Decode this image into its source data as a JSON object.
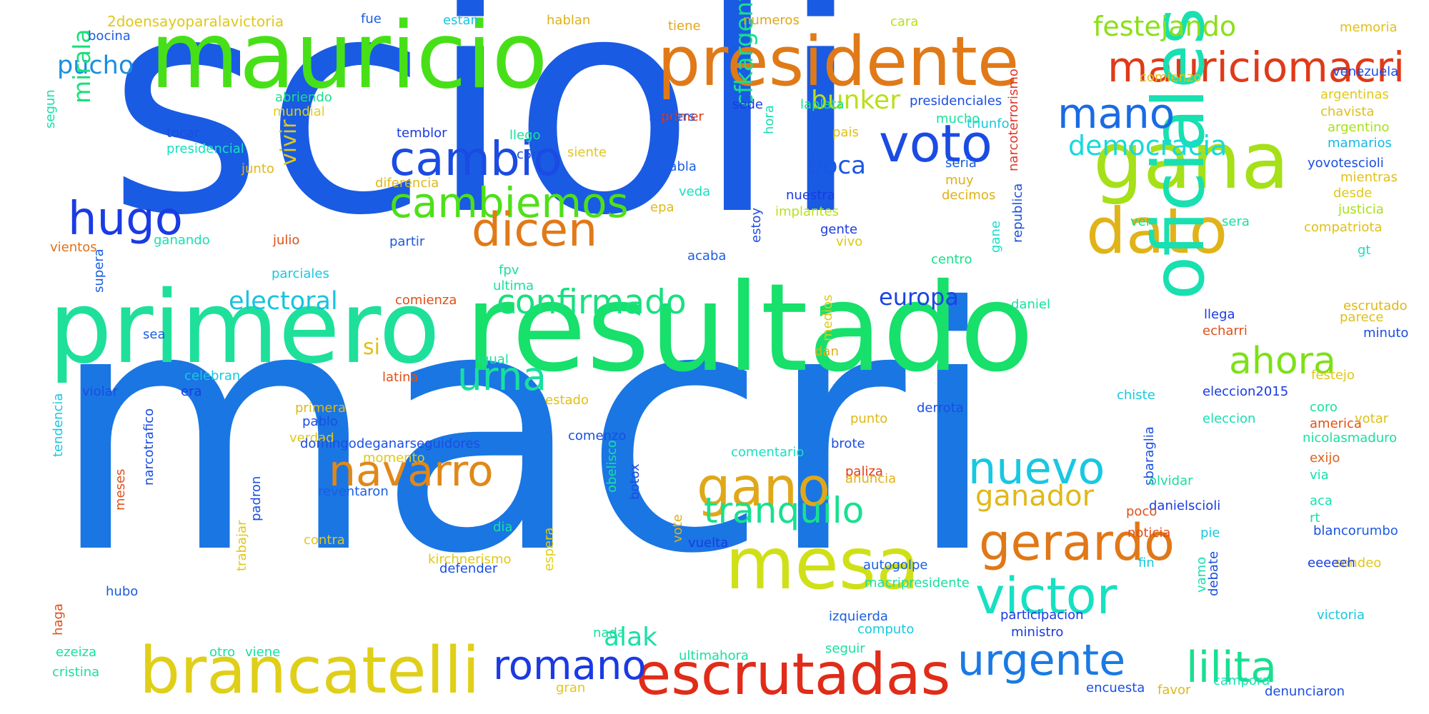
{
  "word_cloud": {
    "words": [
      {
        "text": "scioli",
        "color": "#1a5be3"
      },
      {
        "text": "macri",
        "color": "#1a76e3"
      },
      {
        "text": "resultado",
        "color": "#17e06b"
      },
      {
        "text": "primero",
        "color": "#1ee09a"
      },
      {
        "text": "mauricio",
        "color": "#47e018"
      },
      {
        "text": "presidente",
        "color": "#e07a18"
      },
      {
        "text": "gana",
        "color": "#a5e018"
      },
      {
        "text": "dato",
        "color": "#e0b318"
      },
      {
        "text": "mauriciomacri",
        "color": "#e03a18"
      },
      {
        "text": "brancatelli",
        "color": "#e0cf18"
      },
      {
        "text": "escrutadas",
        "color": "#e02c18"
      },
      {
        "text": "mesa",
        "color": "#d0e018"
      },
      {
        "text": "oficiales",
        "color": "#18e0b0"
      },
      {
        "text": "gano",
        "color": "#e0a818"
      },
      {
        "text": "voto",
        "color": "#1a4be3"
      },
      {
        "text": "mano",
        "color": "#1a6be3"
      },
      {
        "text": "cambio",
        "color": "#1a4be3"
      },
      {
        "text": "cambiemos",
        "color": "#4ee018"
      },
      {
        "text": "dicen",
        "color": "#e07a18"
      },
      {
        "text": "hugo",
        "color": "#1a3be3"
      },
      {
        "text": "confirmado",
        "color": "#18e07e"
      },
      {
        "text": "urna",
        "color": "#18e09e"
      },
      {
        "text": "navarro",
        "color": "#e08818"
      },
      {
        "text": "tranquilo",
        "color": "#18e090"
      },
      {
        "text": "nuevo",
        "color": "#18c8e0"
      },
      {
        "text": "victor",
        "color": "#18e0c2"
      },
      {
        "text": "gerardo",
        "color": "#e07818"
      },
      {
        "text": "urgente",
        "color": "#1a7ae3"
      },
      {
        "text": "lilita",
        "color": "#18e090"
      },
      {
        "text": "romano",
        "color": "#1a3ae3"
      },
      {
        "text": "ahora",
        "color": "#7ee018"
      },
      {
        "text": "festejando",
        "color": "#8be018"
      },
      {
        "text": "bunker",
        "color": "#b8e018"
      },
      {
        "text": "democracia",
        "color": "#18d8e0"
      },
      {
        "text": "cfkargentina",
        "color": "#18e08a"
      },
      {
        "text": "boca",
        "color": "#1a58e3"
      },
      {
        "text": "europa",
        "color": "#1a44e3"
      },
      {
        "text": "ganador",
        "color": "#e0b818"
      },
      {
        "text": "electoral",
        "color": "#18c2e0"
      },
      {
        "text": "pucho",
        "color": "#1a8ee3"
      },
      {
        "text": "mirala",
        "color": "#18e07a"
      },
      {
        "text": "vivir",
        "color": "#e0c818"
      },
      {
        "text": "alak",
        "color": "#18e0a6"
      },
      {
        "text": "si",
        "color": "#e0c018"
      },
      {
        "text": "2doensayoparalavictoria",
        "color": "#e0c818"
      },
      {
        "text": "bocina",
        "color": "#1a5ee3"
      },
      {
        "text": "fue",
        "color": "#1a5ee3"
      },
      {
        "text": "estan",
        "color": "#18c8e0"
      },
      {
        "text": "hablan",
        "color": "#e0b018"
      },
      {
        "text": "tiene",
        "color": "#e0a818"
      },
      {
        "text": "numeros",
        "color": "#e0a818"
      },
      {
        "text": "cara",
        "color": "#b8e018"
      },
      {
        "text": "memoria",
        "color": "#e0c018"
      },
      {
        "text": "comienzo",
        "color": "#e0c018"
      },
      {
        "text": "venezuela",
        "color": "#1a4ee3"
      },
      {
        "text": "abriendo",
        "color": "#18e08a"
      },
      {
        "text": "mundial",
        "color": "#e0d018"
      },
      {
        "text": "sede",
        "color": "#1a3ae3"
      },
      {
        "text": "primer",
        "color": "#e03a18"
      },
      {
        "text": "laplata",
        "color": "#18e088"
      },
      {
        "text": "presidenciales",
        "color": "#1a4ee3"
      },
      {
        "text": "triunfo",
        "color": "#18c8e0"
      },
      {
        "text": "narcoterrorismo",
        "color": "#e0382a"
      },
      {
        "text": "argentinas",
        "color": "#e0c818"
      },
      {
        "text": "chavista",
        "color": "#e0c018"
      },
      {
        "text": "argentino",
        "color": "#a8e018"
      },
      {
        "text": "mamarios",
        "color": "#18b8e0"
      },
      {
        "text": "segun",
        "color": "#18e0a8"
      },
      {
        "text": "tocar",
        "color": "#1a4ee3"
      },
      {
        "text": "temblor",
        "color": "#1a3ae3"
      },
      {
        "text": "llego",
        "color": "#18e0a0"
      },
      {
        "text": "kelpers",
        "color": "#1a58e3"
      },
      {
        "text": "hora",
        "color": "#18e0b0"
      },
      {
        "text": "mucho",
        "color": "#18e0a0"
      },
      {
        "text": "pais",
        "color": "#e0c018"
      },
      {
        "text": "presidencial",
        "color": "#18e0c0"
      },
      {
        "text": "junto",
        "color": "#e0b818"
      },
      {
        "text": "siente",
        "color": "#e0c818"
      },
      {
        "text": "c5n",
        "color": "#1a4ee3"
      },
      {
        "text": "habla",
        "color": "#1a5ee3"
      },
      {
        "text": "seria",
        "color": "#1a5ee3"
      },
      {
        "text": "muy",
        "color": "#e0b018"
      },
      {
        "text": "yovotescioli",
        "color": "#1a4ee3"
      },
      {
        "text": "mientras",
        "color": "#e0c018"
      },
      {
        "text": "diferencia",
        "color": "#e0b818"
      },
      {
        "text": "epa",
        "color": "#e0b818"
      },
      {
        "text": "nuestra",
        "color": "#1a3ae3"
      },
      {
        "text": "decimos",
        "color": "#e0b018"
      },
      {
        "text": "desde",
        "color": "#e0c818"
      },
      {
        "text": "veda",
        "color": "#18e0c0"
      },
      {
        "text": "implantes",
        "color": "#b8e018"
      },
      {
        "text": "republica",
        "color": "#1a4ee3"
      },
      {
        "text": "justicia",
        "color": "#a8e018"
      },
      {
        "text": "ganando",
        "color": "#18e0b0"
      },
      {
        "text": "julio",
        "color": "#e05018"
      },
      {
        "text": "gente",
        "color": "#1a3ae3"
      },
      {
        "text": "estoy",
        "color": "#1a4ee3"
      },
      {
        "text": "gane",
        "color": "#18e0c8"
      },
      {
        "text": "ver",
        "color": "#18e080"
      },
      {
        "text": "sera",
        "color": "#18e0a0"
      },
      {
        "text": "compatriota",
        "color": "#e0c018"
      },
      {
        "text": "vientos",
        "color": "#e07018"
      },
      {
        "text": "partir",
        "color": "#1a58e3"
      },
      {
        "text": "vivo",
        "color": "#e0c818"
      },
      {
        "text": "acaba",
        "color": "#1a5ee3"
      },
      {
        "text": "centro",
        "color": "#18e088"
      },
      {
        "text": "gt",
        "color": "#18e0c0"
      },
      {
        "text": "supera",
        "color": "#1a5ee3"
      },
      {
        "text": "parciales",
        "color": "#18c8e0"
      },
      {
        "text": "fpv",
        "color": "#18e0a0"
      },
      {
        "text": "ultima",
        "color": "#18e0a0"
      },
      {
        "text": "comienza",
        "color": "#e05018"
      },
      {
        "text": "daniel",
        "color": "#18e0a0"
      },
      {
        "text": "escrutado",
        "color": "#e0b818"
      },
      {
        "text": "llega",
        "color": "#1a3ae3"
      },
      {
        "text": "parece",
        "color": "#e0c018"
      },
      {
        "text": "medios",
        "color": "#e0c818"
      },
      {
        "text": "sea",
        "color": "#1a5ee3"
      },
      {
        "text": "igual",
        "color": "#18e0a0"
      },
      {
        "text": "dan",
        "color": "#e0b018"
      },
      {
        "text": "echarri",
        "color": "#e05018"
      },
      {
        "text": "minuto",
        "color": "#1a4ee3"
      },
      {
        "text": "celebran",
        "color": "#18c8e0"
      },
      {
        "text": "latina",
        "color": "#e05018"
      },
      {
        "text": "festejo",
        "color": "#e0c818"
      },
      {
        "text": "violar",
        "color": "#1a4ee3"
      },
      {
        "text": "era",
        "color": "#1a3ae3"
      },
      {
        "text": "chiste",
        "color": "#18c8e0"
      },
      {
        "text": "eleccion2015",
        "color": "#1a3ae3"
      },
      {
        "text": "estado",
        "color": "#e0c018"
      },
      {
        "text": "primera",
        "color": "#e0b818"
      },
      {
        "text": "america",
        "color": "#e05018"
      },
      {
        "text": "coro",
        "color": "#18e0a0"
      },
      {
        "text": "pablo",
        "color": "#1a4ee3"
      },
      {
        "text": "derrota",
        "color": "#1a4ee3"
      },
      {
        "text": "punto",
        "color": "#e0b818"
      },
      {
        "text": "eleccion",
        "color": "#18e0b0"
      },
      {
        "text": "votar",
        "color": "#e0c018"
      },
      {
        "text": "verdad",
        "color": "#e0c818"
      },
      {
        "text": "domingodeganarseguidores",
        "color": "#1a4ee3"
      },
      {
        "text": "comenzo",
        "color": "#1a4ee3"
      },
      {
        "text": "tendencia",
        "color": "#18c8e0"
      },
      {
        "text": "obelisco",
        "color": "#18e0a0"
      },
      {
        "text": "nicolasmaduro",
        "color": "#18e0a0"
      },
      {
        "text": "comentario",
        "color": "#18e0c0"
      },
      {
        "text": "brote",
        "color": "#1a4ee3"
      },
      {
        "text": "momento",
        "color": "#e0c818"
      },
      {
        "text": "exijo",
        "color": "#e06018"
      },
      {
        "text": "narcotrafico",
        "color": "#1a4ee3"
      },
      {
        "text": "paliza",
        "color": "#e03a18"
      },
      {
        "text": "anuncia",
        "color": "#e0b018"
      },
      {
        "text": "via",
        "color": "#18e0b0"
      },
      {
        "text": "sbaraglia",
        "color": "#1a4ee3"
      },
      {
        "text": "botox",
        "color": "#1a4ee3"
      },
      {
        "text": "olvidar",
        "color": "#18e0a0"
      },
      {
        "text": "reventaron",
        "color": "#1a5ee3"
      },
      {
        "text": "meses",
        "color": "#e05018"
      },
      {
        "text": "aca",
        "color": "#18e0b0"
      },
      {
        "text": "padron",
        "color": "#1a4ee3"
      },
      {
        "text": "danielscioli",
        "color": "#1a3ae3"
      },
      {
        "text": "rt",
        "color": "#18e0a0"
      },
      {
        "text": "poco",
        "color": "#e05018"
      },
      {
        "text": "dia",
        "color": "#18e0a0"
      },
      {
        "text": "vote",
        "color": "#e0b018"
      },
      {
        "text": "rumbo",
        "color": "#1a5ee3"
      },
      {
        "text": "contra",
        "color": "#e0c818"
      },
      {
        "text": "blanco",
        "color": "#1a4ee3"
      },
      {
        "text": "pie",
        "color": "#18c8e0"
      },
      {
        "text": "vuelta",
        "color": "#1a3ae3"
      },
      {
        "text": "trabajar",
        "color": "#e0c818"
      },
      {
        "text": "noticia",
        "color": "#e05018"
      },
      {
        "text": "kirchnerismo",
        "color": "#e0c818"
      },
      {
        "text": "haga",
        "color": "#e05018"
      },
      {
        "text": "defender",
        "color": "#1a4ee3"
      },
      {
        "text": "fin",
        "color": "#18c8e0"
      },
      {
        "text": "sondeo",
        "color": "#e0c818"
      },
      {
        "text": "macripresidente",
        "color": "#18e0a0"
      },
      {
        "text": "eeeeeh",
        "color": "#1a3ae3"
      },
      {
        "text": "autogolpe",
        "color": "#1a5ee3"
      },
      {
        "text": "debate",
        "color": "#1a4ee3"
      },
      {
        "text": "vamo",
        "color": "#18e0b0"
      },
      {
        "text": "victoria",
        "color": "#18c8e0"
      },
      {
        "text": "hubo",
        "color": "#1a58e3"
      },
      {
        "text": "izquierda",
        "color": "#1a5ee3"
      },
      {
        "text": "participacion",
        "color": "#1a3ae3"
      },
      {
        "text": "nada",
        "color": "#18e0a0"
      },
      {
        "text": "espera",
        "color": "#e0d018"
      },
      {
        "text": "computo",
        "color": "#18c8e0"
      },
      {
        "text": "ministro",
        "color": "#1a3ae3"
      },
      {
        "text": "ezeiza",
        "color": "#18e0a0"
      },
      {
        "text": "otro",
        "color": "#18e0a0"
      },
      {
        "text": "viene",
        "color": "#18e0a0"
      },
      {
        "text": "ultimahora",
        "color": "#18e0a0"
      },
      {
        "text": "seguir",
        "color": "#18e0a0"
      },
      {
        "text": "cristina",
        "color": "#18e0a0"
      },
      {
        "text": "gran",
        "color": "#e0c818"
      },
      {
        "text": "encuesta",
        "color": "#1a4ee3"
      },
      {
        "text": "favor",
        "color": "#e0b818"
      },
      {
        "text": "campora",
        "color": "#18e0b0"
      },
      {
        "text": "denunciaron",
        "color": "#1a4ee3"
      }
    ]
  }
}
